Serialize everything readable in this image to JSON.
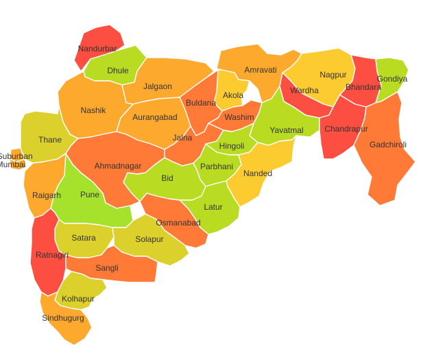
{
  "map": {
    "palette": {
      "red": "#fd4e42",
      "red_orange": "#fe7a36",
      "orange": "#fca92e",
      "yellow": "#fccb30",
      "olive": "#dcd12c",
      "lime": "#b9dc22",
      "green": "#a6e22b"
    },
    "districts": [
      {
        "id": "nandurbar",
        "label": "Nandurbar",
        "color": "red"
      },
      {
        "id": "dhule",
        "label": "Dhule",
        "color": "lime"
      },
      {
        "id": "jalgaon",
        "label": "Jalgaon",
        "color": "orange"
      },
      {
        "id": "amravati",
        "label": "Amravati",
        "color": "orange"
      },
      {
        "id": "nagpur",
        "label": "Nagpur",
        "color": "yellow"
      },
      {
        "id": "bhandara",
        "label": "Bhandara",
        "color": "red"
      },
      {
        "id": "gondiya",
        "label": "Gondiya",
        "color": "lime"
      },
      {
        "id": "akola",
        "label": "Akola",
        "color": "yellow"
      },
      {
        "id": "wardha",
        "label": "Wardha",
        "color": "red"
      },
      {
        "id": "buldana",
        "label": "Buldana",
        "color": "red_orange"
      },
      {
        "id": "washim",
        "label": "Washim",
        "color": "red_orange"
      },
      {
        "id": "nashik",
        "label": "Nashik",
        "color": "orange"
      },
      {
        "id": "aurangabad",
        "label": "Aurangabad",
        "color": "orange"
      },
      {
        "id": "yavatmal",
        "label": "Yavatmal",
        "color": "lime"
      },
      {
        "id": "chandrapur",
        "label": "Chandrapur",
        "color": "red"
      },
      {
        "id": "gadchiroli",
        "label": "Gadchiroli",
        "color": "red_orange"
      },
      {
        "id": "thane",
        "label": "Thane",
        "color": "olive"
      },
      {
        "id": "jalna",
        "label": "Jalna",
        "color": "red_orange"
      },
      {
        "id": "hingoli",
        "label": "Hingoli",
        "color": "lime"
      },
      {
        "id": "mumbai_suburban",
        "label": "bai Suburban",
        "color": "orange"
      },
      {
        "id": "mumbai",
        "label": "Mumbai",
        "color": "orange"
      },
      {
        "id": "ahmadnagar",
        "label": "Ahmadnagar",
        "color": "red_orange"
      },
      {
        "id": "parbhani",
        "label": "Parbhani",
        "color": "lime"
      },
      {
        "id": "nanded",
        "label": "Nanded",
        "color": "yellow"
      },
      {
        "id": "bid",
        "label": "Bid",
        "color": "lime"
      },
      {
        "id": "raigarh",
        "label": "Raigarh",
        "color": "orange"
      },
      {
        "id": "pune",
        "label": "Pune",
        "color": "green"
      },
      {
        "id": "latur",
        "label": "Latur",
        "color": "lime"
      },
      {
        "id": "osmanabad",
        "label": "Osmanabad",
        "color": "red_orange"
      },
      {
        "id": "satara",
        "label": "Satara",
        "color": "olive"
      },
      {
        "id": "solapur",
        "label": "Solapur",
        "color": "olive"
      },
      {
        "id": "ratnagiri",
        "label": "Ratnagiri",
        "color": "red"
      },
      {
        "id": "sangli",
        "label": "Sangli",
        "color": "red_orange"
      },
      {
        "id": "kolhapur",
        "label": "Kolhapur",
        "color": "olive"
      },
      {
        "id": "sindhugurg",
        "label": "Sindhugurg",
        "color": "orange"
      }
    ]
  }
}
